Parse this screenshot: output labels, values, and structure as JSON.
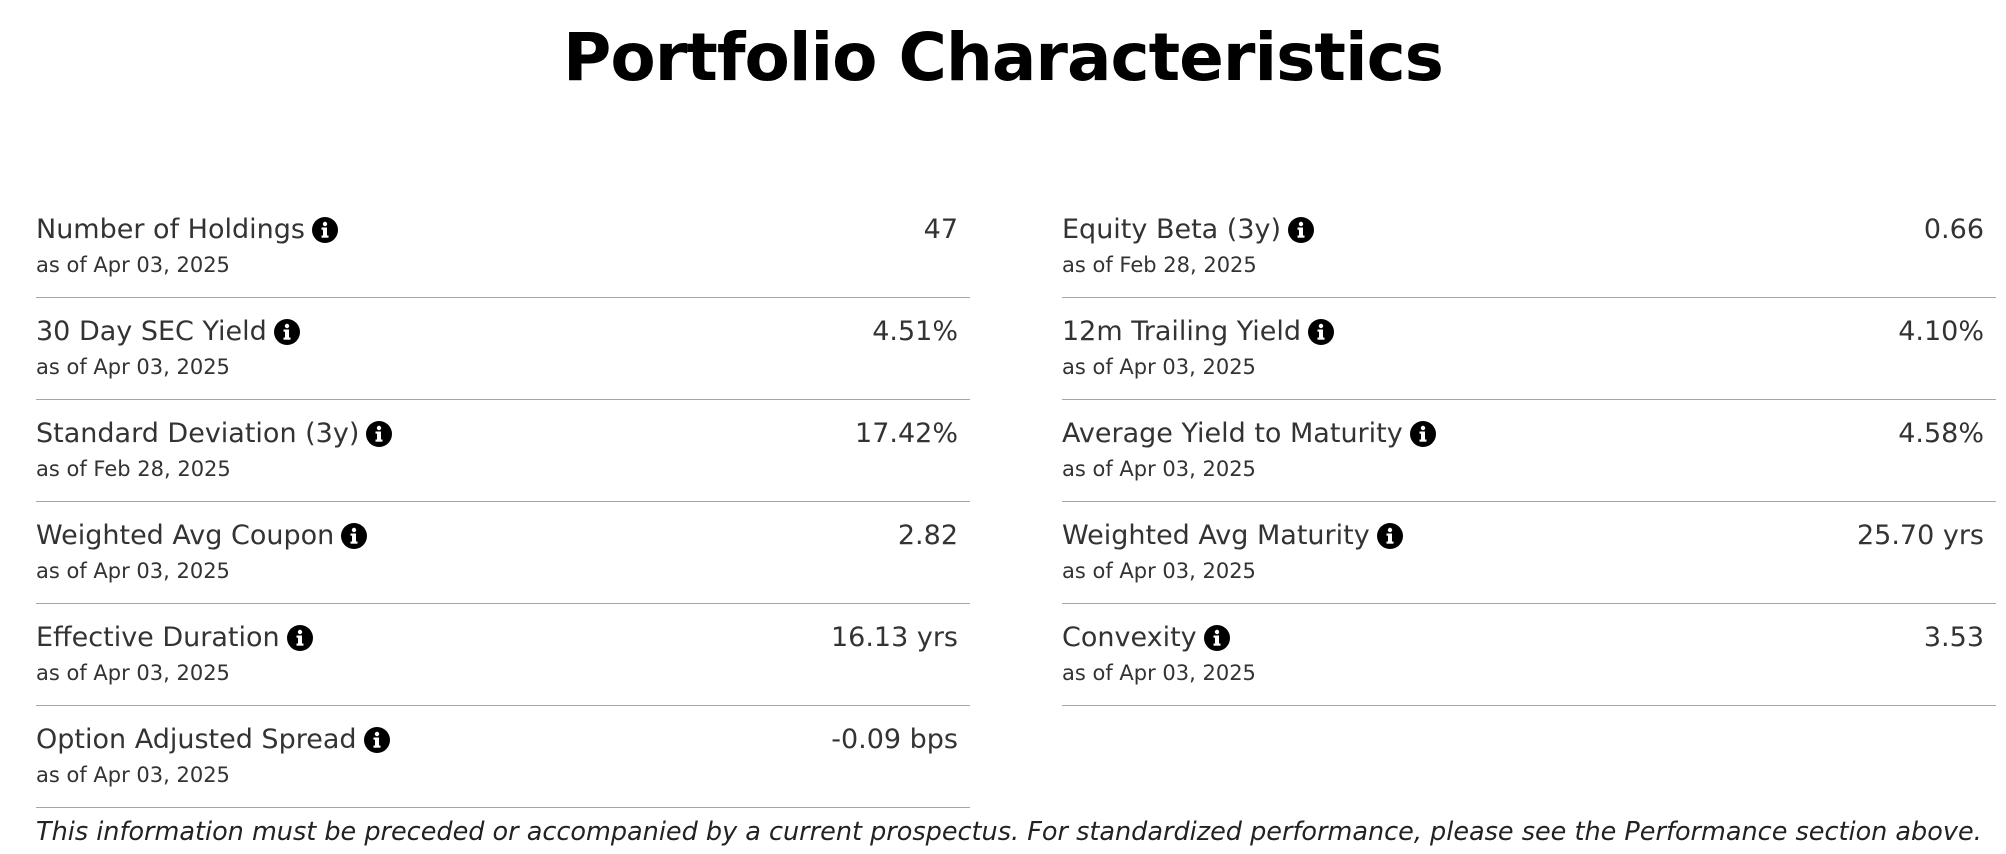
{
  "header": {
    "title": "Portfolio Characteristics"
  },
  "columns": [
    {
      "rows": [
        {
          "label": "Number of Holdings",
          "date": "as of Apr 03, 2025",
          "value": "47"
        },
        {
          "label": "30 Day SEC Yield",
          "date": "as of Apr 03, 2025",
          "value": "4.51%"
        },
        {
          "label": "Standard Deviation (3y)",
          "date": "as of Feb 28, 2025",
          "value": "17.42%"
        },
        {
          "label": "Weighted Avg Coupon",
          "date": "as of Apr 03, 2025",
          "value": "2.82"
        },
        {
          "label": "Effective Duration",
          "date": "as of Apr 03, 2025",
          "value": "16.13 yrs"
        },
        {
          "label": "Option Adjusted Spread",
          "date": "as of Apr 03, 2025",
          "value": "-0.09 bps"
        }
      ]
    },
    {
      "rows": [
        {
          "label": "Equity Beta (3y)",
          "date": "as of Feb 28, 2025",
          "value": "0.66"
        },
        {
          "label": "12m Trailing Yield",
          "date": "as of Apr 03, 2025",
          "value": "4.10%"
        },
        {
          "label": "Average Yield to Maturity",
          "date": "as of Apr 03, 2025",
          "value": "4.58%"
        },
        {
          "label": "Weighted Avg Maturity",
          "date": "as of Apr 03, 2025",
          "value": "25.70 yrs"
        },
        {
          "label": "Convexity",
          "date": "as of Apr 03, 2025",
          "value": "3.53"
        }
      ]
    }
  ],
  "footnote": "This information must be preceded or accompanied by a current prospectus. For standardized performance, please see the Performance section above."
}
